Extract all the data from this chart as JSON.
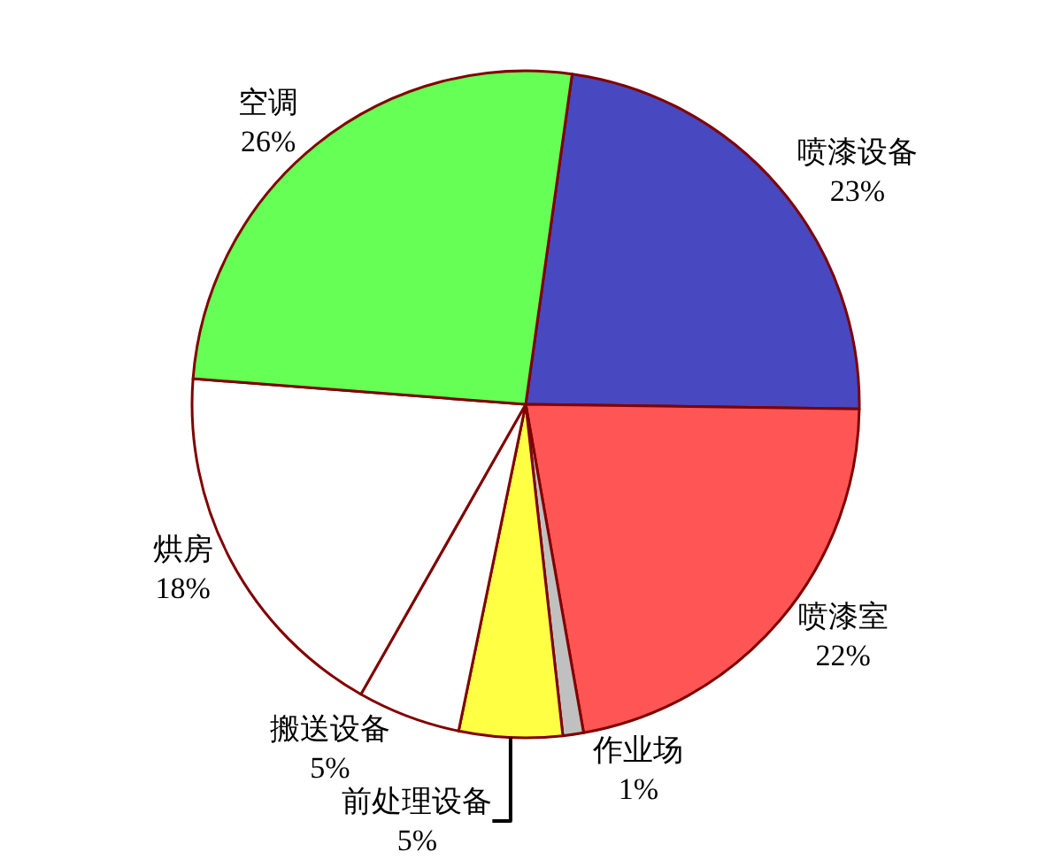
{
  "chart_data": {
    "type": "pie",
    "categories": [
      "喷漆设备",
      "喷漆室",
      "作业场",
      "前处理设备",
      "搬送设备",
      "烘房",
      "空调"
    ],
    "values": [
      23,
      22,
      1,
      5,
      5,
      18,
      26
    ],
    "value_labels": [
      "23%",
      "22%",
      "1%",
      "5%",
      "5%",
      "18%",
      "26%"
    ],
    "colors": [
      "#4848c0",
      "#ff5555",
      "#c0c0c0",
      "#ffff44",
      "#ffffff",
      "#ffffff",
      "#66ff55"
    ],
    "legend": false
  }
}
